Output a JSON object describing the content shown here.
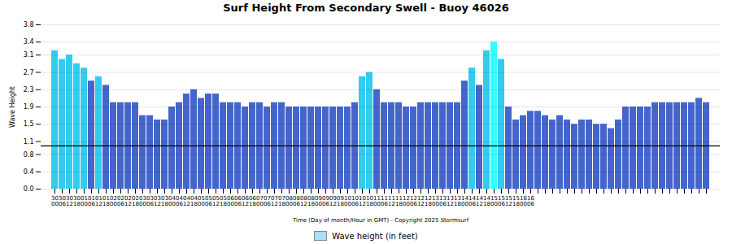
{
  "chart_data": {
    "type": "bar",
    "title": "Surf Height From Secondary Swell - Buoy 46026",
    "xlabel": "Time (Day of month/Hour in GMT) - Copyright 2025 Stormsurf",
    "ylabel": "Wave Height",
    "categories": [
      "30\n00",
      "30\n06",
      "30\n12",
      "30\n18",
      "01\n00",
      "01\n06",
      "01\n12",
      "01\n18",
      "02\n00",
      "02\n06",
      "02\n12",
      "02\n18",
      "03\n00",
      "03\n06",
      "03\n12",
      "03\n18",
      "04\n00",
      "04\n06",
      "04\n12",
      "04\n18",
      "05\n00",
      "05\n06",
      "05\n12",
      "05\n18",
      "06\n00",
      "06\n06",
      "06\n12",
      "06\n18",
      "07\n00",
      "07\n06",
      "07\n12",
      "07\n18",
      "08\n00",
      "08\n06",
      "08\n12",
      "08\n18",
      "09\n00",
      "09\n06",
      "09\n12",
      "09\n18",
      "10\n00",
      "10\n06",
      "10\n12",
      "10\n18",
      "11\n00",
      "11\n06",
      "11\n12",
      "11\n18",
      "12\n00",
      "12\n06",
      "12\n12",
      "12\n18",
      "13\n00",
      "13\n06",
      "13\n12",
      "13\n18",
      "14\n00",
      "14\n06",
      "14\n12",
      "14\n18",
      "15\n00",
      "15\n06",
      "15\n12",
      "15\n18",
      "16\n00",
      "16\n06",
      null,
      null,
      null,
      null,
      null,
      null,
      null,
      null,
      null,
      null,
      null,
      null,
      null,
      null,
      null,
      null,
      null,
      null,
      null,
      null,
      null,
      null,
      null,
      null
    ],
    "series": [
      {
        "name": "Wave height (in feet)",
        "color": "#aaddff",
        "values": [
          3.2,
          3.0,
          3.1,
          2.9,
          2.8,
          2.5,
          2.6,
          2.4,
          2.0,
          2.0,
          2.0,
          2.0,
          1.7,
          1.7,
          1.6,
          1.6,
          1.9,
          2.0,
          2.2,
          2.3,
          2.1,
          2.2,
          2.2,
          2.0,
          2.0,
          2.0,
          1.9,
          2.0,
          2.0,
          1.9,
          2.0,
          2.0,
          1.9,
          1.9,
          1.9,
          1.9,
          1.9,
          1.9,
          1.9,
          1.9,
          1.9,
          2.0,
          2.6,
          2.7,
          2.3,
          2.0,
          2.0,
          2.0,
          1.9,
          1.9,
          2.0,
          2.0,
          2.0,
          2.0,
          2.0,
          2.0,
          2.5,
          2.8,
          2.4,
          3.2,
          3.4,
          3.0,
          1.9,
          1.6,
          1.7,
          1.8,
          1.8,
          1.7,
          1.6,
          1.7,
          1.6,
          1.5,
          1.6,
          1.6,
          1.5,
          1.5,
          1.4,
          1.6,
          1.9,
          1.9,
          1.9,
          1.9,
          2.0,
          2.0,
          2.0,
          2.0,
          2.0,
          2.0,
          2.1,
          2.0
        ],
        "colors": [
          "#33ccee",
          "#33ccee",
          "#33ccee",
          "#33ccee",
          "#33ccee",
          "#4466cc",
          "#33ccee",
          "#4466cc",
          "#4466cc",
          "#4466cc",
          "#4466cc",
          "#4466cc",
          "#4466cc",
          "#4466cc",
          "#4466cc",
          "#4466cc",
          "#4466cc",
          "#4466cc",
          "#4466cc",
          "#4466cc",
          "#4466cc",
          "#4466cc",
          "#4466cc",
          "#4466cc",
          "#4466cc",
          "#4466cc",
          "#4466cc",
          "#4466cc",
          "#4466cc",
          "#4466cc",
          "#4466cc",
          "#4466cc",
          "#4466cc",
          "#4466cc",
          "#4466cc",
          "#4466cc",
          "#4466cc",
          "#4466cc",
          "#4466cc",
          "#4466cc",
          "#4466cc",
          "#4466cc",
          "#33ccee",
          "#33ccee",
          "#4466cc",
          "#4466cc",
          "#4466cc",
          "#4466cc",
          "#4466cc",
          "#4466cc",
          "#4466cc",
          "#4466cc",
          "#4466cc",
          "#4466cc",
          "#4466cc",
          "#4466cc",
          "#4466cc",
          "#33ccee",
          "#4466cc",
          "#33ccee",
          "#33ffff",
          "#33ccee",
          "#4466cc",
          "#4466cc",
          "#4466cc",
          "#4466cc",
          "#4466cc",
          "#4466cc",
          "#4466cc",
          "#4466cc",
          "#4466cc",
          "#4466cc",
          "#4466cc",
          "#4466cc",
          "#4466cc",
          "#4466cc",
          "#4466cc",
          "#4466cc",
          "#4466cc",
          "#4466cc",
          "#4466cc",
          "#4466cc",
          "#4466cc",
          "#4466cc",
          "#4466cc",
          "#4466cc",
          "#4466cc",
          "#4466cc",
          "#4466cc",
          "#4466cc"
        ]
      }
    ],
    "hline": 1.0,
    "ylim": [
      0.0,
      3.8
    ],
    "yticks": [
      {
        "value": 0.0,
        "label": "0.0"
      },
      0.4,
      0.8,
      1.1,
      1.5,
      1.9,
      2.3,
      2.7,
      3.1,
      3.4,
      3.8
    ],
    "grid": true,
    "legend": "bottom"
  }
}
